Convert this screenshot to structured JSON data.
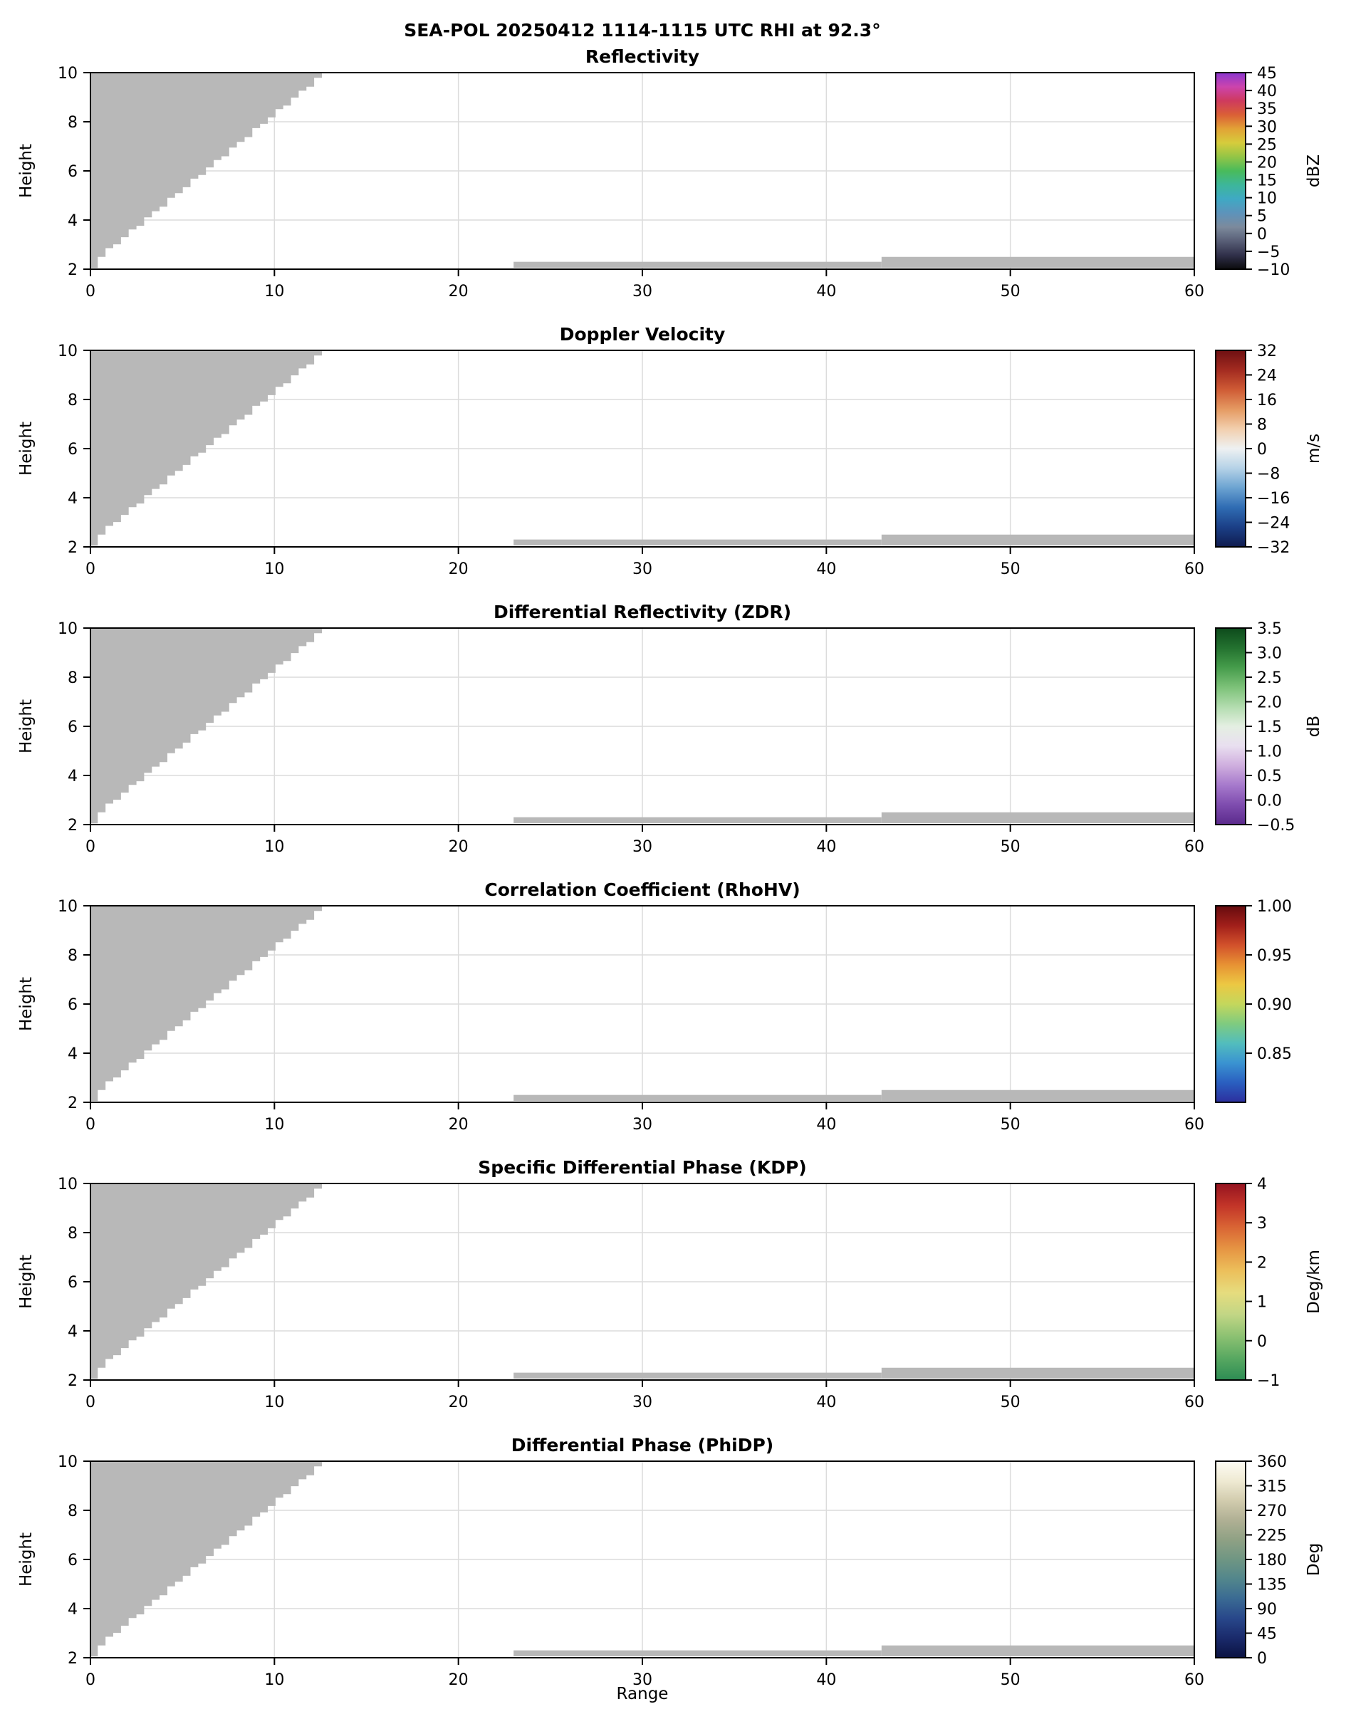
{
  "figure": {
    "suptitle": "SEA-POL 20250412 1114-1115 UTC RHI at 92.3°",
    "xlabel": "Range",
    "ylabel": "Height"
  },
  "chart_data": {
    "type": "heatmap",
    "description": "Six stacked radar RHI panels. Data area is blank (no echoes) except gray masked regions: a stepped wedge in the upper-left and thin strips near the bottom between range 23-60.",
    "suptitle": "SEA-POL 20250412 1114-1115 UTC RHI at 92.3°",
    "xlabel": "Range",
    "ylabel": "Height",
    "x_range": [
      0,
      60
    ],
    "y_range": [
      2,
      10
    ],
    "x_ticks": [
      "0",
      "10",
      "20",
      "30",
      "40",
      "50",
      "60"
    ],
    "y_ticks": [
      "2",
      "4",
      "6",
      "8",
      "10"
    ],
    "grid": true,
    "mask_color": "#b8b8b8",
    "mask_regions": {
      "wedge": {
        "left_x": 0,
        "y_min": 2.05,
        "y_top": 10,
        "x_top": 13,
        "x_bottom": 0.4,
        "y_bottom": 2.28,
        "steps": 30
      },
      "strips": [
        {
          "x0": 23,
          "x1": 43,
          "y0": 2.06,
          "y1": 2.3
        },
        {
          "x0": 43,
          "x1": 60,
          "y0": 2.06,
          "y1": 2.5
        }
      ]
    },
    "panels": [
      {
        "key": "reflectivity",
        "title": "Reflectivity",
        "cb_label": "dBZ",
        "cb_min": -10,
        "cb_max": 45,
        "cb_ticks": [
          "−10",
          "−5",
          "0",
          "5",
          "10",
          "15",
          "20",
          "25",
          "30",
          "35",
          "40",
          "45"
        ],
        "cb_colors": [
          "#0b0b0d",
          "#30304a",
          "#585e76",
          "#7c8a9c",
          "#5d93bb",
          "#3fa9c4",
          "#3db69a",
          "#49bb5b",
          "#93c546",
          "#d6cc3c",
          "#e2a236",
          "#da5f36",
          "#ce3a5e",
          "#cc44ad",
          "#8a36cf"
        ]
      },
      {
        "key": "doppler-velocity",
        "title": "Doppler Velocity",
        "cb_label": "m/s",
        "cb_min": -32,
        "cb_max": 32,
        "cb_ticks": [
          "−32",
          "−24",
          "−16",
          "−8",
          "0",
          "8",
          "16",
          "24",
          "32"
        ],
        "cb_colors": [
          "#101c4f",
          "#1b3f86",
          "#2f6cb3",
          "#6ba3d1",
          "#b5d2e7",
          "#eef1f2",
          "#f2cfae",
          "#e59a62",
          "#cf5b35",
          "#a32b20",
          "#6e0f12"
        ]
      },
      {
        "key": "zdr",
        "title": "Differential Reflectivity (ZDR)",
        "cb_label": "dB",
        "cb_min": -0.5,
        "cb_max": 3.5,
        "cb_ticks": [
          "−0.5",
          "0.0",
          "0.5",
          "1.0",
          "1.5",
          "2.0",
          "2.5",
          "3.0",
          "3.5"
        ],
        "cb_colors": [
          "#5b2a8c",
          "#7e4cae",
          "#a679cc",
          "#cfaede",
          "#e9dff0",
          "#e4efe2",
          "#b2dcae",
          "#7cc178",
          "#459c4b",
          "#23712f",
          "#0d4a1c"
        ]
      },
      {
        "key": "rhohv",
        "title": "Correlation Coefficient (RhoHV)",
        "cb_label": "",
        "cb_min": 0.8,
        "cb_max": 1.0,
        "cb_ticks": [
          "0.85",
          "0.90",
          "0.95",
          "1.00"
        ],
        "cb_colors": [
          "#2c2f9e",
          "#2a5fc0",
          "#3a93d1",
          "#52bdbd",
          "#7fcb7f",
          "#c4d75c",
          "#ecc843",
          "#e79233",
          "#d2512b",
          "#a11f1a",
          "#650b0e"
        ]
      },
      {
        "key": "kdp",
        "title": "Specific Differential Phase (KDP)",
        "cb_label": "Deg/km",
        "cb_min": -1,
        "cb_max": 4,
        "cb_ticks": [
          "−1",
          "0",
          "1",
          "2",
          "3",
          "4"
        ],
        "cb_colors": [
          "#2d8c54",
          "#58a861",
          "#8cc172",
          "#c2d685",
          "#e6dc7e",
          "#ecbf5b",
          "#e69543",
          "#d96434",
          "#c23428",
          "#941320"
        ]
      },
      {
        "key": "phidp",
        "title": "Differential Phase (PhiDP)",
        "cb_label": "Deg",
        "cb_min": 0,
        "cb_max": 360,
        "cb_ticks": [
          "0",
          "45",
          "90",
          "135",
          "180",
          "225",
          "270",
          "315",
          "360"
        ],
        "cb_colors": [
          "#0b1342",
          "#1a2a6b",
          "#28478a",
          "#3a6a93",
          "#52868c",
          "#6f9683",
          "#8fa184",
          "#b0b094",
          "#d2ccae",
          "#efead3",
          "#fdfcf4"
        ]
      }
    ]
  }
}
